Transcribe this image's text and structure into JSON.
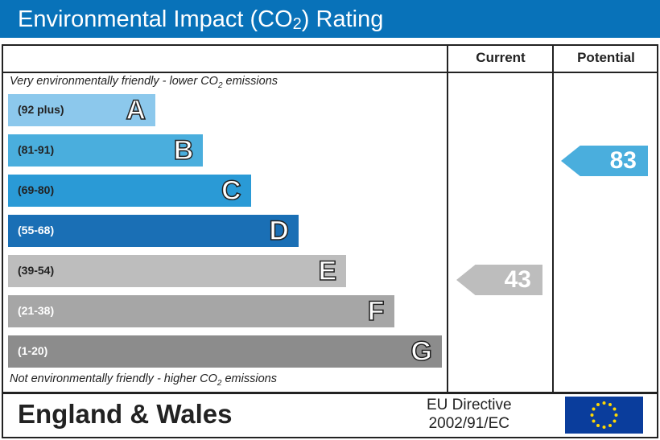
{
  "title": {
    "main": "Environmental Impact (CO",
    "sub": "2",
    "end": ") Rating"
  },
  "columns": {
    "current": "Current",
    "potential": "Potential"
  },
  "notes": {
    "top": {
      "pre": "Very environmentally friendly - lower CO",
      "sub": "2",
      "post": " emissions"
    },
    "bottom": {
      "pre": "Not environmentally friendly - higher CO",
      "sub": "2",
      "post": " emissions"
    }
  },
  "bands": [
    {
      "range": "(92 plus)",
      "letter": "A",
      "color": "#8cc8ec"
    },
    {
      "range": "(81-91)",
      "letter": "B",
      "color": "#4aaedd"
    },
    {
      "range": "(69-80)",
      "letter": "C",
      "color": "#2a9ad6"
    },
    {
      "range": "(55-68)",
      "letter": "D",
      "color": "#1a6fb5"
    },
    {
      "range": "(39-54)",
      "letter": "E",
      "color": "#bdbdbd"
    },
    {
      "range": "(21-38)",
      "letter": "F",
      "color": "#a6a6a6"
    },
    {
      "range": "(1-20)",
      "letter": "G",
      "color": "#8c8c8c"
    }
  ],
  "current": {
    "value": "43",
    "band": "E",
    "color": "#bdbdbd"
  },
  "potential": {
    "value": "83",
    "band": "B",
    "color": "#4aaedd"
  },
  "footer": {
    "region": "England & Wales",
    "directive_line1": "EU Directive",
    "directive_line2": "2002/91/EC"
  }
}
